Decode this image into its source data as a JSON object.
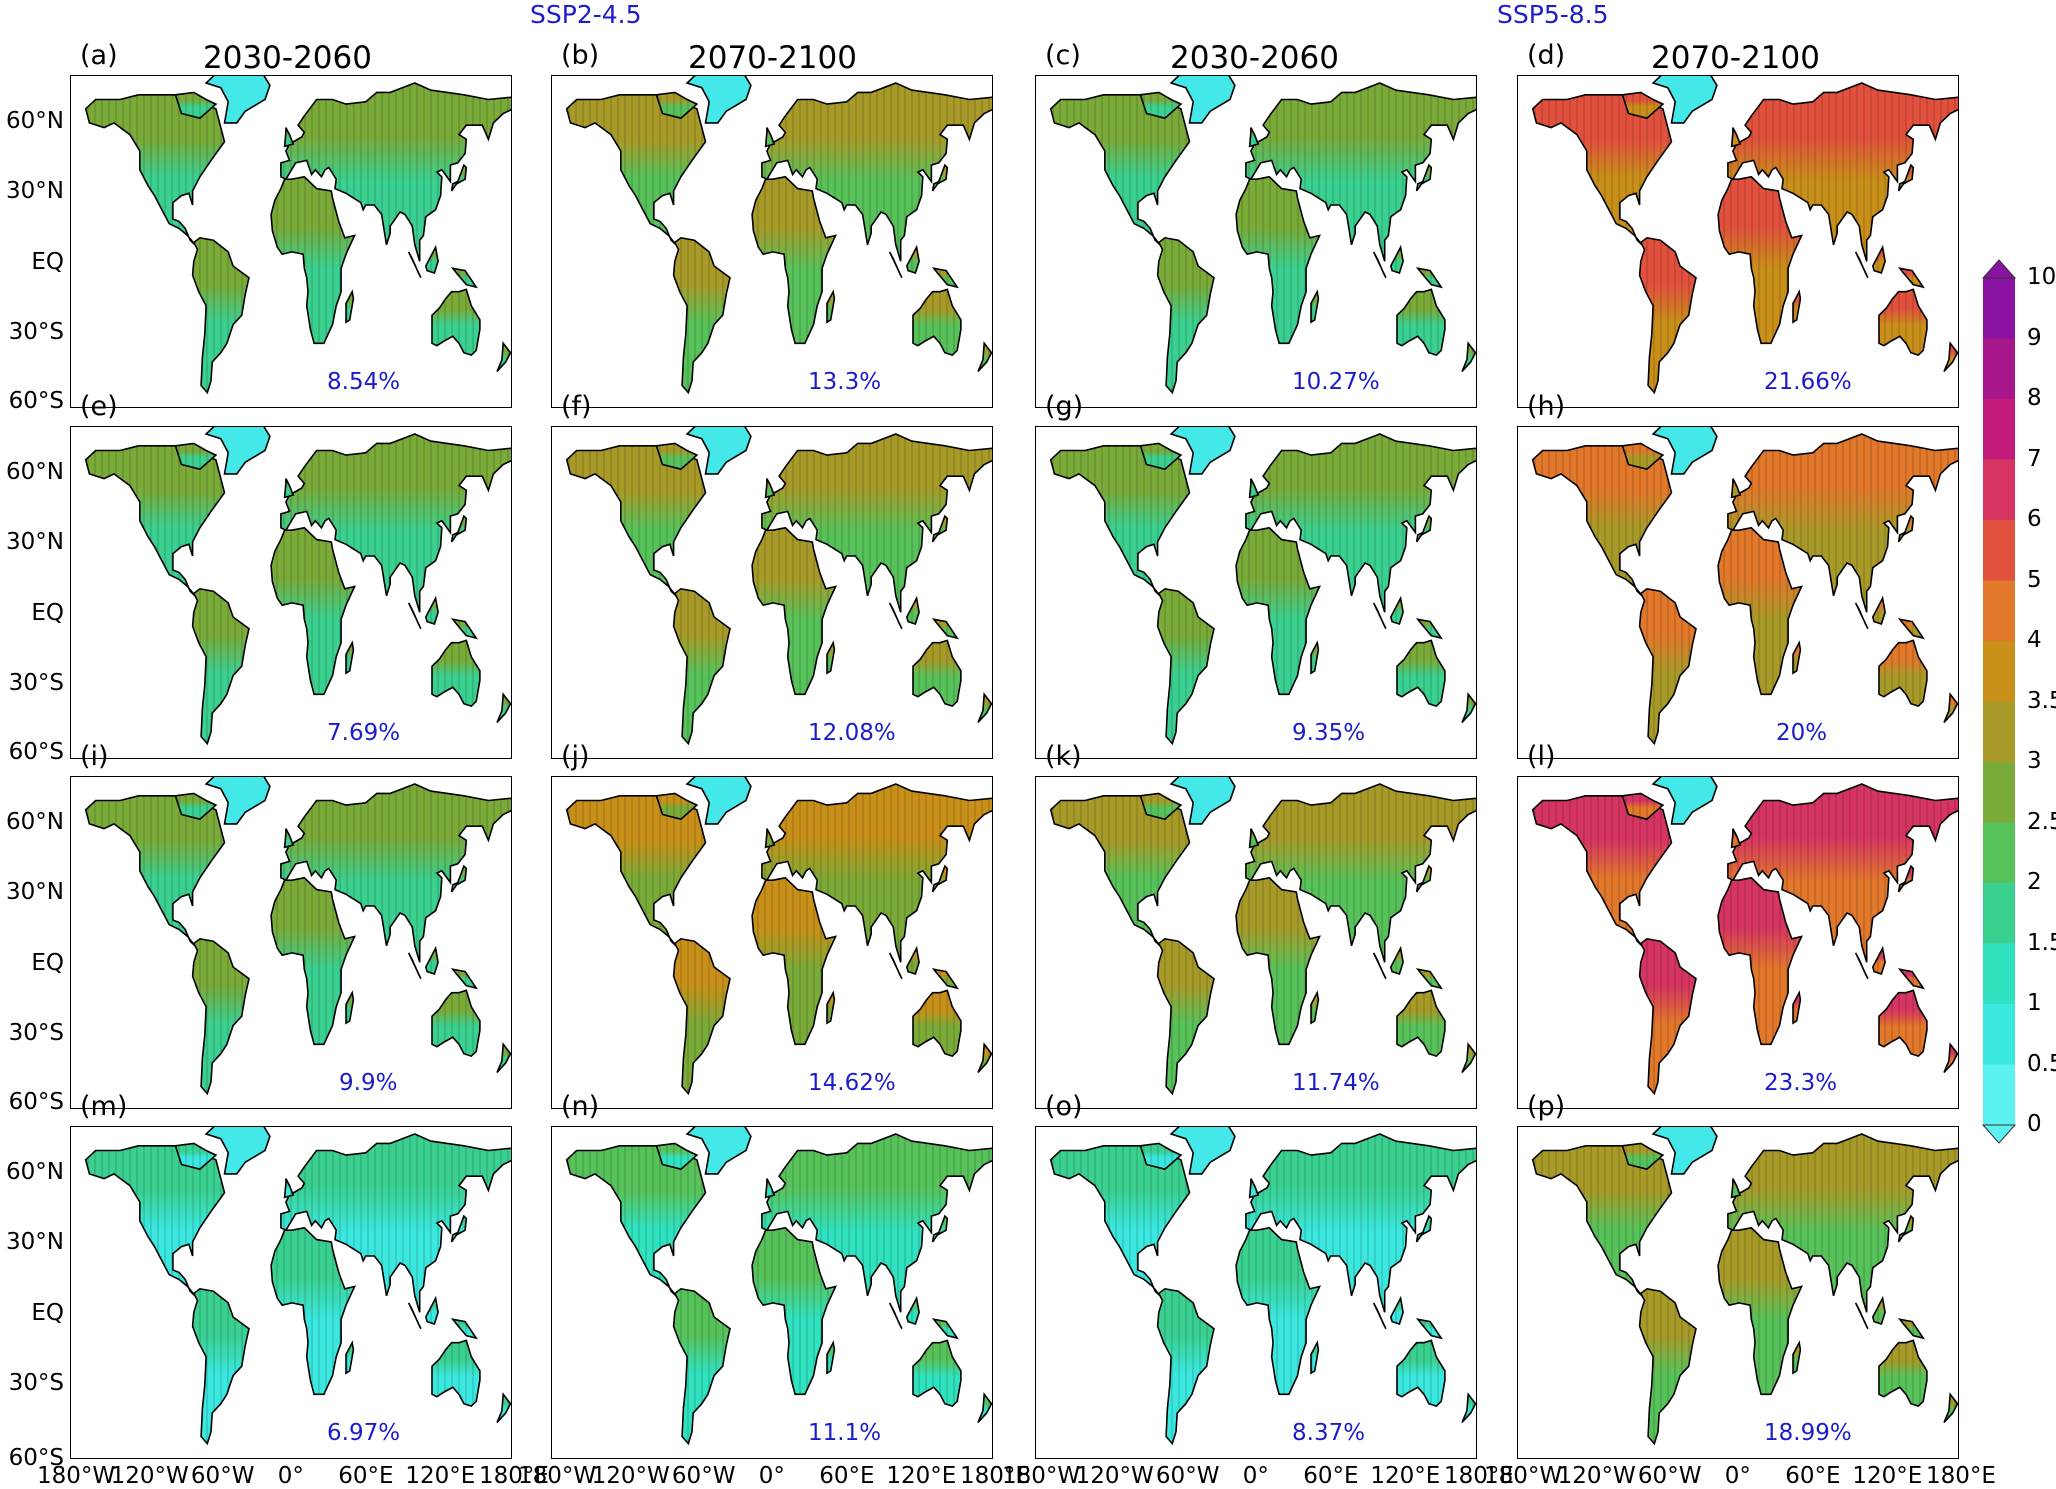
{
  "scenarios": [
    "SSP2-4.5",
    "SSP5-8.5"
  ],
  "periods": [
    "2030-2060",
    "2070-2100",
    "2030-2060",
    "2070-2100"
  ],
  "panel_labels": [
    "(a)",
    "(b)",
    "(c)",
    "(d)",
    "(e)",
    "(f)",
    "(g)",
    "(h)",
    "(i)",
    "(j)",
    "(k)",
    "(l)",
    "(m)",
    "(n)",
    "(o)",
    "(p)"
  ],
  "percentages": [
    "8.54%",
    "13.3%",
    "10.27%",
    "21.66%",
    "7.69%",
    "12.08%",
    "9.35%",
    "20%",
    "9.9%",
    "14.62%",
    "11.74%",
    "23.3%",
    "6.97%",
    "11.1%",
    "8.37%",
    "18.99%"
  ],
  "lat_ticks": [
    "60°N",
    "30°N",
    "EQ",
    "30°S",
    "60°S"
  ],
  "lon_tick_groups": [
    [
      "180°W",
      "120°W",
      "60°W",
      "0°",
      "60°E",
      "120°E",
      "180°E"
    ],
    [
      "180°W",
      "120°W",
      "60°W",
      "0°",
      "60°E",
      "120°E",
      "180°E"
    ],
    [
      "180°W",
      "120°W",
      "60°W",
      "0°",
      "60°E",
      "120°E",
      "180°E"
    ],
    [
      "180°W",
      "120°W",
      "60°W",
      "0°",
      "60°E",
      "120°E",
      "180°E"
    ]
  ],
  "colorbar": {
    "ticks": [
      "10",
      "9",
      "8",
      "7",
      "6",
      "5",
      "4",
      "3.5",
      "3",
      "2.5",
      "2",
      "1.5",
      "1",
      "0.5",
      "0"
    ],
    "colors": [
      "#8a12a0",
      "#a8168c",
      "#c21a7a",
      "#d63562",
      "#e2503e",
      "#e2782a",
      "#c89018",
      "#a89a28",
      "#7aaa38",
      "#58c25a",
      "#3ad090",
      "#30e2c0",
      "#3ae8e0",
      "#5cf2f2"
    ],
    "top_arrow_color": "#8a12a0",
    "bottom_arrow_color": "#5cf2f2"
  },
  "panel_intensity": [
    4,
    5,
    4,
    8,
    4,
    5,
    4,
    7,
    4,
    6,
    5,
    9,
    2,
    3,
    2,
    5
  ],
  "colors": {
    "scenario_text": "#1c1ccc",
    "percent_text": "#1c1ccc",
    "contour_green": "#44ee44"
  }
}
